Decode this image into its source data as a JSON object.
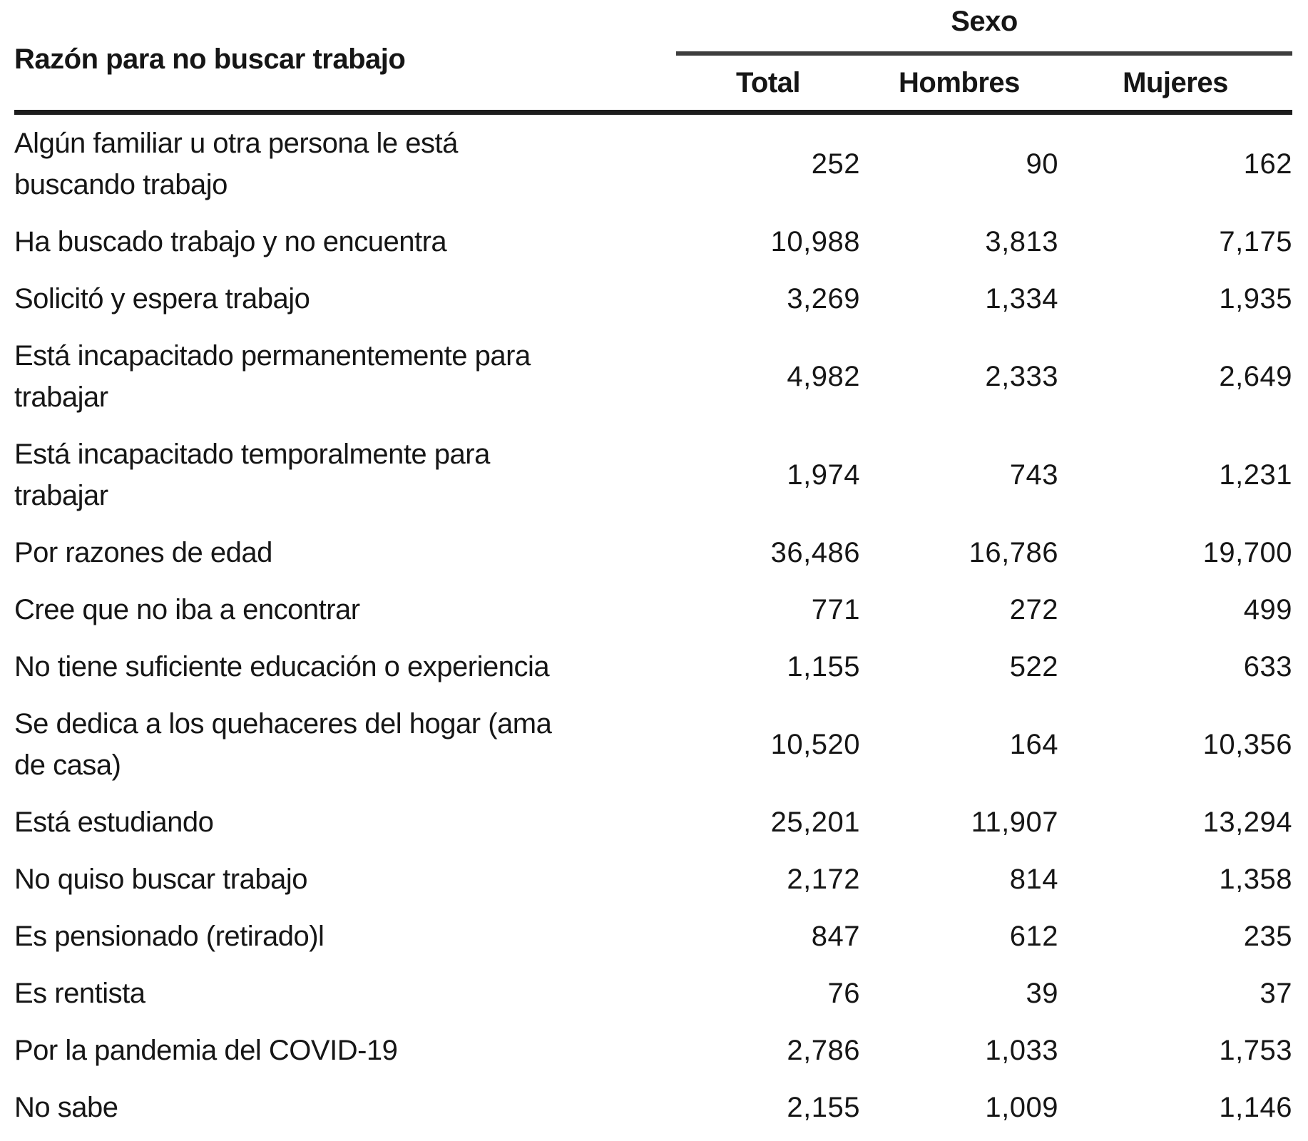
{
  "table": {
    "reason_header": "Razón para no buscar trabajo",
    "group_header": "Sexo",
    "columns": {
      "total": "Total",
      "hombres": "Hombres",
      "mujeres": "Mujeres"
    },
    "rows": [
      {
        "reason": "Algún familiar u otra persona le está\nbuscando trabajo",
        "total": "252",
        "hombres": "90",
        "mujeres": "162"
      },
      {
        "reason": "Ha buscado trabajo y no encuentra",
        "total": "10,988",
        "hombres": "3,813",
        "mujeres": "7,175"
      },
      {
        "reason": "Solicitó y espera trabajo",
        "total": "3,269",
        "hombres": "1,334",
        "mujeres": "1,935"
      },
      {
        "reason": "Está incapacitado permanentemente para\ntrabajar",
        "total": "4,982",
        "hombres": "2,333",
        "mujeres": "2,649"
      },
      {
        "reason": "Está incapacitado temporalmente para\ntrabajar",
        "total": "1,974",
        "hombres": "743",
        "mujeres": "1,231"
      },
      {
        "reason": "Por razones de edad",
        "total": "36,486",
        "hombres": "16,786",
        "mujeres": "19,700"
      },
      {
        "reason": "Cree que no iba a encontrar",
        "total": "771",
        "hombres": "272",
        "mujeres": "499"
      },
      {
        "reason": "No tiene suficiente educación o experiencia",
        "total": "1,155",
        "hombres": "522",
        "mujeres": "633"
      },
      {
        "reason": "Se dedica a los quehaceres del hogar (ama\nde casa)",
        "total": "10,520",
        "hombres": "164",
        "mujeres": "10,356"
      },
      {
        "reason": "Está estudiando",
        "total": "25,201",
        "hombres": "11,907",
        "mujeres": "13,294"
      },
      {
        "reason": "No quiso buscar trabajo",
        "total": "2,172",
        "hombres": "814",
        "mujeres": "1,358"
      },
      {
        "reason": "Es pensionado (retirado)l",
        "total": "847",
        "hombres": "612",
        "mujeres": "235"
      },
      {
        "reason": "Es rentista",
        "total": "76",
        "hombres": "39",
        "mujeres": "37"
      },
      {
        "reason": "Por la pandemia del COVID-19",
        "total": "2,786",
        "hombres": "1,033",
        "mujeres": "1,753"
      },
      {
        "reason": "No sabe",
        "total": "2,155",
        "hombres": "1,009",
        "mujeres": "1,146"
      }
    ]
  },
  "colors": {
    "text": "#161616",
    "rule_heavy": "#1d1d1d",
    "rule_group": "#3d3d3d",
    "background": "#ffffff"
  }
}
